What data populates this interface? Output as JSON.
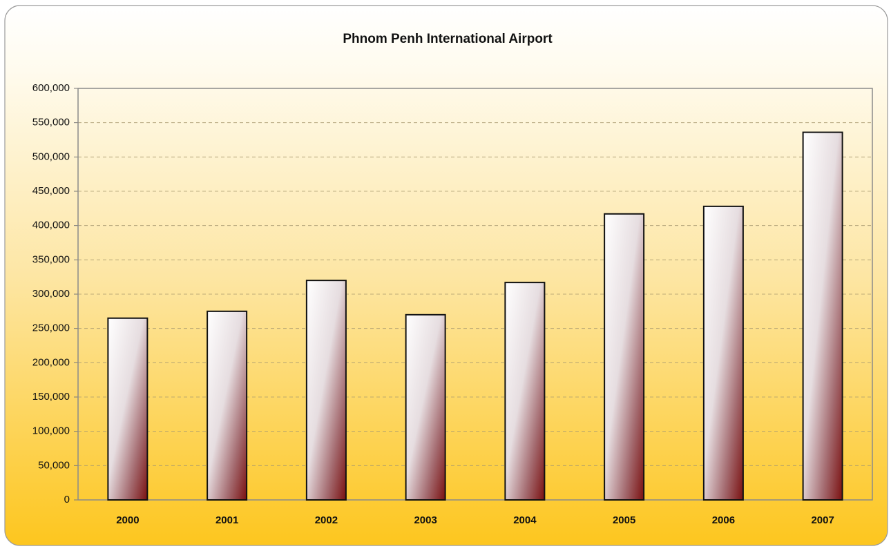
{
  "chart_data": {
    "type": "bar",
    "title": "Phnom Penh International Airport",
    "categories": [
      "2000",
      "2001",
      "2002",
      "2003",
      "2004",
      "2005",
      "2006",
      "2007"
    ],
    "values": [
      265000,
      275000,
      320000,
      270000,
      317000,
      417000,
      428000,
      536000
    ],
    "ylim": [
      0,
      600000
    ],
    "yticks": [
      0,
      {
        "value": 50000,
        "label": "50,000"
      },
      {
        "value": 100000,
        "label": "100,000"
      },
      {
        "value": 150000,
        "label": "150,000"
      },
      {
        "value": 200000,
        "label": "200,000"
      },
      {
        "value": 250000,
        "label": "250,000"
      },
      {
        "value": 300000,
        "label": "300,000"
      },
      {
        "value": 350000,
        "label": "350,000"
      },
      {
        "value": 400000,
        "label": "400,000"
      },
      {
        "value": 450000,
        "label": "450,000"
      },
      {
        "value": 500000,
        "label": "500,000"
      },
      {
        "value": 550000,
        "label": "550,000"
      },
      {
        "value": 600000,
        "label": "600,000"
      }
    ],
    "grid": true
  }
}
